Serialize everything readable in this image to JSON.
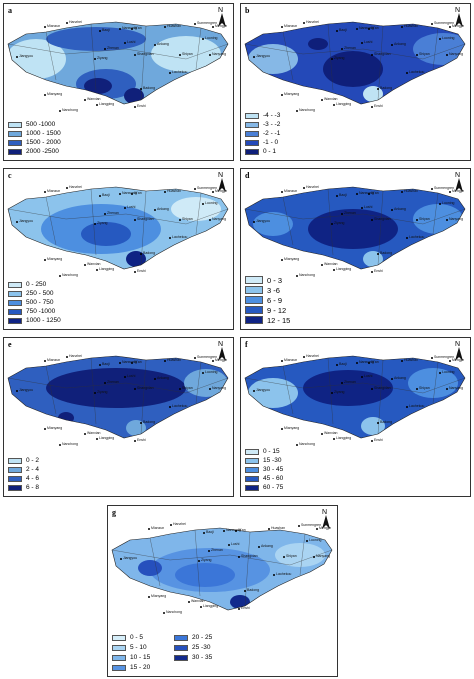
{
  "panels": [
    {
      "id": "a",
      "label": "a",
      "legend": [
        {
          "range": "500 -1000",
          "color": "#bfe3f4"
        },
        {
          "range": "1000 - 1500",
          "color": "#6fa8dc"
        },
        {
          "range": "1500 - 2000",
          "color": "#2f5fbf"
        },
        {
          "range": "2000 -2500",
          "color": "#10207a"
        }
      ]
    },
    {
      "id": "b",
      "label": "b",
      "legend": [
        {
          "range": "-4 - -3",
          "color": "#bfe3f4"
        },
        {
          "range": "-3 - -2",
          "color": "#86b8e6"
        },
        {
          "range": "-2 - -1",
          "color": "#4a7fd6"
        },
        {
          "range": "-1 - 0",
          "color": "#2449b8"
        },
        {
          "range": "0 - 1",
          "color": "#0f1f7a"
        }
      ]
    },
    {
      "id": "c",
      "label": "c",
      "legend": [
        {
          "range": "0 - 250",
          "color": "#cfeaf7"
        },
        {
          "range": "250 - 500",
          "color": "#8cc3ec"
        },
        {
          "range": "500 - 750",
          "color": "#4d8fe0"
        },
        {
          "range": "750 -1000",
          "color": "#2659c0"
        },
        {
          "range": "1000 - 1250",
          "color": "#0f2384"
        }
      ]
    },
    {
      "id": "d",
      "label": "d",
      "legend": [
        {
          "range": "0 - 3",
          "color": "#cfeaf7"
        },
        {
          "range": "3 -6",
          "color": "#8cc3ec"
        },
        {
          "range": "6 - 9",
          "color": "#4d8fe0"
        },
        {
          "range": "9 - 12",
          "color": "#2659c0"
        },
        {
          "range": "12 - 15",
          "color": "#0f2384"
        }
      ]
    },
    {
      "id": "e",
      "label": "e",
      "legend": [
        {
          "range": "0 - 2",
          "color": "#bfe3f4"
        },
        {
          "range": "2 - 4",
          "color": "#6fa8dc"
        },
        {
          "range": "4 - 6",
          "color": "#2f5fbf"
        },
        {
          "range": "6 - 8",
          "color": "#10207a"
        }
      ]
    },
    {
      "id": "f",
      "label": "f",
      "legend": [
        {
          "range": "0 - 15",
          "color": "#cfeaf7"
        },
        {
          "range": "15 -30",
          "color": "#8cc3ec"
        },
        {
          "range": "30 - 45",
          "color": "#4d8fe0"
        },
        {
          "range": "45 - 60",
          "color": "#2659c0"
        },
        {
          "range": "60 - 75",
          "color": "#0f2384"
        }
      ]
    },
    {
      "id": "g",
      "label": "g",
      "legend": [
        {
          "range": "0 - 5",
          "color": "#d6eef9"
        },
        {
          "range": "20 - 25",
          "color": "#3b76d8"
        },
        {
          "range": "5 - 10",
          "color": "#aad4f2"
        },
        {
          "range": "25 -30",
          "color": "#2650bd"
        },
        {
          "range": "10 - 15",
          "color": "#7fb6ea"
        },
        {
          "range": "30 - 35",
          "color": "#122a8c"
        },
        {
          "range": "15 - 20",
          "color": "#5793e2"
        }
      ]
    }
  ],
  "cities": [
    "Mianzun",
    "Hanzhei",
    "Baoji",
    "Nanwang",
    "Xi'an",
    "Huashan",
    "Sunmengren",
    "Mengjin",
    "Luoning",
    "Nanyang",
    "Ankang",
    "Lushi",
    "Zhenan",
    "Shangxian",
    "Ziyang",
    "Laohekou",
    "Badong",
    "Enshi",
    "Wanxian",
    "Liangping",
    "Nanchong",
    "Mianyang",
    "Jiangyou",
    "Shiyan"
  ],
  "north_letter": "N"
}
